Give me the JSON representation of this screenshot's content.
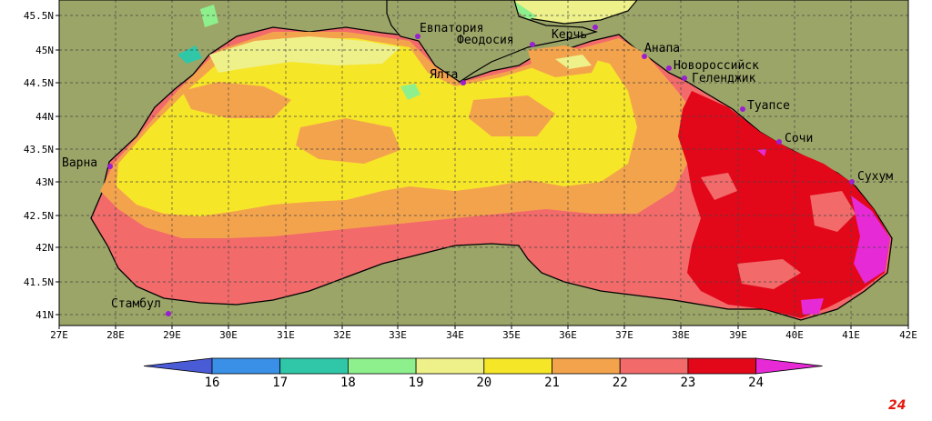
{
  "map": {
    "lat_labels": [
      "45.5N",
      "45N",
      "44.5N",
      "44N",
      "43.5N",
      "43N",
      "42.5N",
      "42N",
      "41.5N",
      "41N"
    ],
    "lon_labels": [
      "27E",
      "28E",
      "29E",
      "30E",
      "31E",
      "32E",
      "33E",
      "34E",
      "35E",
      "36E",
      "37E",
      "38E",
      "39E",
      "40E",
      "41E",
      "42E"
    ],
    "cities": [
      {
        "name": "Евпатория"
      },
      {
        "name": "Феодосия"
      },
      {
        "name": "Керчь"
      },
      {
        "name": "Анапа"
      },
      {
        "name": "Новороссийск"
      },
      {
        "name": "Геленджик"
      },
      {
        "name": "Ялта"
      },
      {
        "name": "Туапсе"
      },
      {
        "name": "Сочи"
      },
      {
        "name": "Сухум"
      },
      {
        "name": "Варна"
      },
      {
        "name": "Стамбул"
      }
    ]
  },
  "colorbar": {
    "ticks": [
      "16",
      "17",
      "18",
      "19",
      "20",
      "21",
      "22",
      "23",
      "24"
    ],
    "colors": {
      "below_16": "#4a5bd6",
      "16_17": "#3a8fe6",
      "17_18": "#2fc7a8",
      "18_19": "#8ef08c",
      "19_20": "#eef08a",
      "20_21": "#f6e628",
      "21_22": "#f4a34d",
      "22_23": "#f26a6a",
      "23_24": "#e2081a",
      "above_24": "#e62ad6"
    }
  },
  "colors": {
    "land": "#9ca568",
    "coast": "#000000",
    "city_dot": "#9a1fd0"
  },
  "logo": {
    "text": "24"
  }
}
